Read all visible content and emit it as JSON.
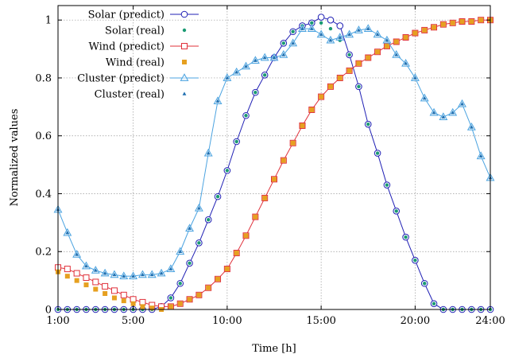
{
  "chart_data": {
    "type": "line",
    "xlabel": "Time [h]",
    "ylabel": "Normalized values",
    "xlim": [
      1,
      24
    ],
    "ylim": [
      0,
      1.05
    ],
    "x_ticks": [
      {
        "value": 1,
        "label": "1:00"
      },
      {
        "value": 5,
        "label": "5:00"
      },
      {
        "value": 10,
        "label": "10:00"
      },
      {
        "value": 15,
        "label": "15:00"
      },
      {
        "value": 20,
        "label": "20:00"
      },
      {
        "value": 24,
        "label": "24:00"
      }
    ],
    "y_ticks": [
      {
        "value": 0,
        "label": "0"
      },
      {
        "value": 0.2,
        "label": "0.2"
      },
      {
        "value": 0.4,
        "label": "0.4"
      },
      {
        "value": 0.6,
        "label": "0.6"
      },
      {
        "value": 0.8,
        "label": "0.8"
      },
      {
        "value": 1,
        "label": "1"
      }
    ],
    "grid": true,
    "legend_position": "top-left",
    "x": [
      1,
      1.5,
      2,
      2.5,
      3,
      3.5,
      4,
      4.5,
      5,
      5.5,
      6,
      6.5,
      7,
      7.5,
      8,
      8.5,
      9,
      9.5,
      10,
      10.5,
      11,
      11.5,
      12,
      12.5,
      13,
      13.5,
      14,
      14.5,
      15,
      15.5,
      16,
      16.5,
      17,
      17.5,
      18,
      18.5,
      19,
      19.5,
      20,
      20.5,
      21,
      21.5,
      22,
      22.5,
      23,
      23.5,
      24
    ],
    "series": [
      {
        "name": "Solar (predict)",
        "color": "#1f1fb4",
        "marker": "circle-open",
        "line": true,
        "values": [
          0,
          0,
          0,
          0,
          0,
          0,
          0,
          0,
          0,
          0,
          0,
          0.01,
          0.04,
          0.09,
          0.16,
          0.23,
          0.31,
          0.39,
          0.48,
          0.58,
          0.67,
          0.75,
          0.81,
          0.87,
          0.92,
          0.96,
          0.98,
          0.99,
          1.01,
          1.0,
          0.98,
          0.88,
          0.77,
          0.64,
          0.54,
          0.43,
          0.34,
          0.25,
          0.17,
          0.09,
          0.02,
          0,
          0,
          0,
          0,
          0,
          0
        ]
      },
      {
        "name": "Solar (real)",
        "color": "#1a9a73",
        "marker": "dot",
        "line": false,
        "values": [
          0,
          0,
          0,
          0,
          0,
          0,
          0,
          0,
          0,
          0,
          0,
          0.01,
          0.04,
          0.09,
          0.16,
          0.23,
          0.31,
          0.39,
          0.48,
          0.58,
          0.67,
          0.75,
          0.81,
          0.87,
          0.92,
          0.96,
          0.98,
          0.99,
          0.99,
          0.97,
          0.93,
          0.88,
          0.77,
          0.64,
          0.54,
          0.43,
          0.34,
          0.25,
          0.17,
          0.09,
          0.02,
          0,
          0,
          0,
          0,
          0,
          0
        ]
      },
      {
        "name": "Wind (predict)",
        "color": "#e0303a",
        "marker": "square-open",
        "line": true,
        "values": [
          0.145,
          0.14,
          0.125,
          0.11,
          0.095,
          0.08,
          0.065,
          0.05,
          0.035,
          0.025,
          0.015,
          0.01,
          0.01,
          0.02,
          0.035,
          0.05,
          0.075,
          0.105,
          0.14,
          0.195,
          0.255,
          0.32,
          0.385,
          0.45,
          0.515,
          0.575,
          0.635,
          0.69,
          0.735,
          0.77,
          0.8,
          0.825,
          0.85,
          0.87,
          0.89,
          0.91,
          0.925,
          0.94,
          0.955,
          0.965,
          0.975,
          0.985,
          0.99,
          0.995,
          0.995,
          1.0,
          1.0
        ]
      },
      {
        "name": "Wind (real)",
        "color": "#e6a020",
        "marker": "square-filled",
        "line": false,
        "values": [
          0.13,
          0.115,
          0.1,
          0.085,
          0.07,
          0.055,
          0.04,
          0.03,
          0.02,
          0.01,
          0.005,
          0,
          0.01,
          0.02,
          0.035,
          0.05,
          0.075,
          0.105,
          0.14,
          0.195,
          0.255,
          0.32,
          0.385,
          0.45,
          0.515,
          0.575,
          0.635,
          0.69,
          0.735,
          0.77,
          0.8,
          0.825,
          0.85,
          0.87,
          0.89,
          0.91,
          0.925,
          0.94,
          0.955,
          0.965,
          0.975,
          0.985,
          0.99,
          0.995,
          0.995,
          1.0,
          1.0
        ]
      },
      {
        "name": "Cluster (predict)",
        "color": "#4ba3e0",
        "marker": "triangle-open",
        "line": true,
        "values": [
          0.345,
          0.265,
          0.19,
          0.15,
          0.135,
          0.125,
          0.12,
          0.115,
          0.115,
          0.12,
          0.12,
          0.125,
          0.14,
          0.2,
          0.28,
          0.35,
          0.54,
          0.72,
          0.8,
          0.82,
          0.84,
          0.86,
          0.87,
          0.87,
          0.88,
          0.92,
          0.97,
          0.97,
          0.95,
          0.93,
          0.94,
          0.95,
          0.965,
          0.97,
          0.95,
          0.93,
          0.88,
          0.85,
          0.8,
          0.73,
          0.68,
          0.665,
          0.68,
          0.71,
          0.63,
          0.53,
          0.455
        ]
      },
      {
        "name": "Cluster (real)",
        "color": "#1f6fb0",
        "marker": "triangle-filled",
        "line": false,
        "values": [
          0.345,
          0.265,
          0.19,
          0.15,
          0.135,
          0.125,
          0.12,
          0.115,
          0.115,
          0.12,
          0.12,
          0.125,
          0.14,
          0.2,
          0.28,
          0.35,
          0.54,
          0.72,
          0.8,
          0.82,
          0.84,
          0.86,
          0.87,
          0.87,
          0.88,
          0.92,
          0.97,
          0.97,
          0.95,
          0.93,
          0.94,
          0.95,
          0.965,
          0.97,
          0.95,
          0.93,
          0.88,
          0.85,
          0.8,
          0.73,
          0.68,
          0.665,
          0.68,
          0.71,
          0.63,
          0.53,
          0.455
        ]
      }
    ]
  }
}
